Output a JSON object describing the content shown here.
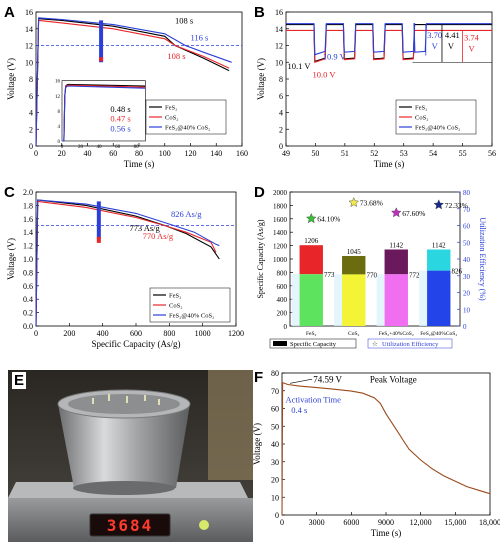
{
  "panels": {
    "A": {
      "label": "A",
      "chart_data": {
        "type": "line",
        "xlabel": "Time (s)",
        "ylabel": "Voltage (V)",
        "xlim": [
          0,
          160
        ],
        "ylim": [
          0,
          16
        ],
        "xticks": [
          "0",
          "20",
          "40",
          "60",
          "80",
          "100",
          "120",
          "140",
          "160"
        ],
        "yticks": [
          "0",
          "2",
          "4",
          "6",
          "8",
          "10",
          "12",
          "14",
          "16"
        ],
        "series": [
          {
            "name": "FeS₂",
            "color": "#000000",
            "x": [
              0,
              2,
              20,
              60,
              100,
              108,
              130,
              150
            ],
            "y": [
              0,
              15.2,
              15.0,
              14.3,
              13.1,
              12.0,
              10.5,
              9.0
            ]
          },
          {
            "name": "CoS₂",
            "color": "#e8262a",
            "x": [
              0,
              2,
              20,
              60,
              100,
              108,
              130,
              150
            ],
            "y": [
              0,
              15.0,
              14.7,
              14.0,
              12.8,
              12.0,
              10.7,
              9.3
            ]
          },
          {
            "name": "FeS₂@40% CoS₂",
            "color": "#2b3fd6",
            "x": [
              0,
              2,
              20,
              60,
              100,
              116,
              130,
              152
            ],
            "y": [
              0,
              15.3,
              15.1,
              14.5,
              13.4,
              12.0,
              11.2,
              10.0
            ]
          }
        ],
        "annotations": [
          {
            "text": "108 s",
            "color": "#000000"
          },
          {
            "text": "116 s",
            "color": "#2b3fd6"
          },
          {
            "text": "108 s",
            "color": "#e8262a"
          },
          {
            "text": "0.48 s",
            "color": "#000000"
          },
          {
            "text": "0.47 s",
            "color": "#e8262a"
          },
          {
            "text": "0.56 s",
            "color": "#2b3fd6"
          }
        ],
        "inset_xticks": [
          "0",
          "20",
          "40",
          "60",
          "80"
        ],
        "inset_yticks": [
          "0",
          "4",
          "8",
          "12",
          "16"
        ]
      }
    },
    "B": {
      "label": "B",
      "chart_data": {
        "type": "line",
        "xlabel": "Time (s)",
        "ylabel": "Voltage (V)",
        "xlim": [
          49,
          56
        ],
        "ylim": [
          0,
          16
        ],
        "xticks": [
          "49",
          "50",
          "51",
          "52",
          "53",
          "54",
          "55",
          "56"
        ],
        "yticks": [
          "0",
          "2",
          "4",
          "6",
          "8",
          "10",
          "12",
          "14",
          "16"
        ],
        "series": [
          {
            "name": "FeS₂",
            "color": "#000000",
            "baseline": 14.5,
            "min": 10.1
          },
          {
            "name": "CoS₂",
            "color": "#e8262a",
            "baseline": 13.8,
            "min": 10.0
          },
          {
            "name": "FeS₂@40% CoS₂",
            "color": "#2b3fd6",
            "baseline": 14.6,
            "min": 10.9
          }
        ],
        "annotations": [
          {
            "text": "10.1 V",
            "color": "#000000"
          },
          {
            "text": "10.0 V",
            "color": "#e8262a"
          },
          {
            "text": "10.9 V",
            "color": "#2b3fd6"
          },
          {
            "text": "3.70",
            "color": "#2b3fd6"
          },
          {
            "text": "V",
            "color": "#2b3fd6"
          },
          {
            "text": "4.41",
            "color": "#000000"
          },
          {
            "text": "V",
            "color": "#000000"
          },
          {
            "text": "3.74",
            "color": "#e8262a"
          },
          {
            "text": "V",
            "color": "#e8262a"
          }
        ]
      }
    },
    "C": {
      "label": "C",
      "chart_data": {
        "type": "line",
        "xlabel": "Specific Capacity (As/g)",
        "ylabel": "Voltage (V)",
        "xlim": [
          0,
          1200
        ],
        "ylim": [
          0,
          2.0
        ],
        "xticks": [
          "0",
          "200",
          "400",
          "600",
          "800",
          "1000",
          "1200"
        ],
        "yticks": [
          "0.0",
          "0.2",
          "0.4",
          "0.6",
          "0.8",
          "1.0",
          "1.2",
          "1.4",
          "1.6",
          "1.8",
          "2.0"
        ],
        "series": [
          {
            "name": "FeS₂",
            "color": "#000000",
            "x": [
              0,
              10,
              300,
              600,
              773,
              900,
              1050,
              1100
            ],
            "y": [
              0,
              1.88,
              1.8,
              1.64,
              1.5,
              1.38,
              1.18,
              1.0
            ]
          },
          {
            "name": "CoS₂",
            "color": "#e8262a",
            "x": [
              0,
              10,
              300,
              600,
              770,
              900,
              1050,
              1080
            ],
            "y": [
              0,
              1.86,
              1.77,
              1.62,
              1.5,
              1.4,
              1.25,
              1.1
            ]
          },
          {
            "name": "FeS₂@40% CoS₂",
            "color": "#2b3fd6",
            "x": [
              0,
              10,
              300,
              600,
              826,
              950,
              1080,
              1100
            ],
            "y": [
              0,
              1.88,
              1.82,
              1.68,
              1.5,
              1.4,
              1.22,
              1.2
            ]
          }
        ],
        "annotations": [
          {
            "text": "826 As/g",
            "color": "#2b3fd6"
          },
          {
            "text": "773 As/g",
            "color": "#000000"
          },
          {
            "text": "770 As/g",
            "color": "#e8262a"
          }
        ]
      }
    },
    "D": {
      "label": "D",
      "chart_data": {
        "type": "bar",
        "categories": [
          "FeS₂",
          "CoS₂",
          "FeS₂+40%CoS₂",
          "FeS₂@40%CoS₂"
        ],
        "ylabel": "Specific Capacity (As/g)",
        "y2label": "Utilization Efficiency (%)",
        "ylim": [
          0,
          2000
        ],
        "y2lim": [
          0,
          80
        ],
        "yticks": [
          "0",
          "200",
          "400",
          "600",
          "800",
          "1000",
          "1200",
          "1400",
          "1600",
          "1800",
          "2000"
        ],
        "y2ticks": [
          "0",
          "10",
          "20",
          "30",
          "40",
          "50",
          "60",
          "70",
          "80"
        ],
        "capacity": [
          1206,
          1045,
          1142,
          1142
        ],
        "utilized": [
          773,
          770,
          772,
          826
        ],
        "efficiency": [
          64.1,
          73.68,
          67.6,
          72.33
        ],
        "capacity_labels": [
          "1206",
          "1045",
          "1142",
          "1142"
        ],
        "utilized_labels": [
          "773",
          "770",
          "772",
          "826"
        ],
        "efficiency_labels": [
          "64.10%",
          "73.68%",
          "67.60%",
          "72.33%"
        ],
        "top_colors": [
          "#e8262a",
          "#6b6b10",
          "#6a1a5c",
          "#2ad6e0"
        ],
        "bottom_colors": [
          "#5ee35e",
          "#f4f436",
          "#f06ef0",
          "#2244e8"
        ],
        "star_colors": [
          "#34c234",
          "#f4e84a",
          "#c030c0",
          "#1a2a8a"
        ],
        "legend": [
          "Specific Capacity",
          "Utilization Efficiency"
        ]
      }
    },
    "E": {
      "label": "E",
      "scale_reading": "3684"
    },
    "F": {
      "label": "F",
      "chart_data": {
        "type": "line",
        "xlabel": "Time (s)",
        "ylabel": "Voltage (V)",
        "xlim": [
          0,
          18000
        ],
        "ylim": [
          0,
          80
        ],
        "xticks": [
          "0",
          "3000",
          "6000",
          "9000",
          "12,000",
          "15,000",
          "18,000"
        ],
        "yticks": [
          "0",
          "10",
          "20",
          "30",
          "40",
          "50",
          "60",
          "70",
          "80"
        ],
        "series": [
          {
            "name": "",
            "color": "#9a4a1a",
            "x": [
              0,
              50,
              500,
              1500,
              3000,
              4500,
              6000,
              7000,
              8000,
              8500,
              9000,
              9500,
              10000,
              10500,
              11000,
              12000,
              13000,
              14000,
              15000,
              16000,
              17000,
              18000
            ],
            "y": [
              0,
              74.59,
              73.5,
              72.6,
              71.8,
              70.9,
              69.8,
              68.6,
              66,
              63,
              57,
              52,
              47,
              42,
              37,
              31,
              26,
              22,
              19,
              16,
              14,
              12
            ]
          }
        ],
        "annotations": [
          {
            "text": "74.59 V",
            "color": "#000000"
          },
          {
            "text": "Peak Voltage",
            "color": "#000000"
          },
          {
            "text": "Activation Time",
            "color": "#2b3fd6"
          },
          {
            "text": "0.4 s",
            "color": "#2b3fd6"
          }
        ]
      }
    }
  },
  "colors": {
    "fes2": "#000000",
    "cos2": "#e8262a",
    "composite": "#2b3fd6",
    "discharge": "#9a4a1a"
  }
}
